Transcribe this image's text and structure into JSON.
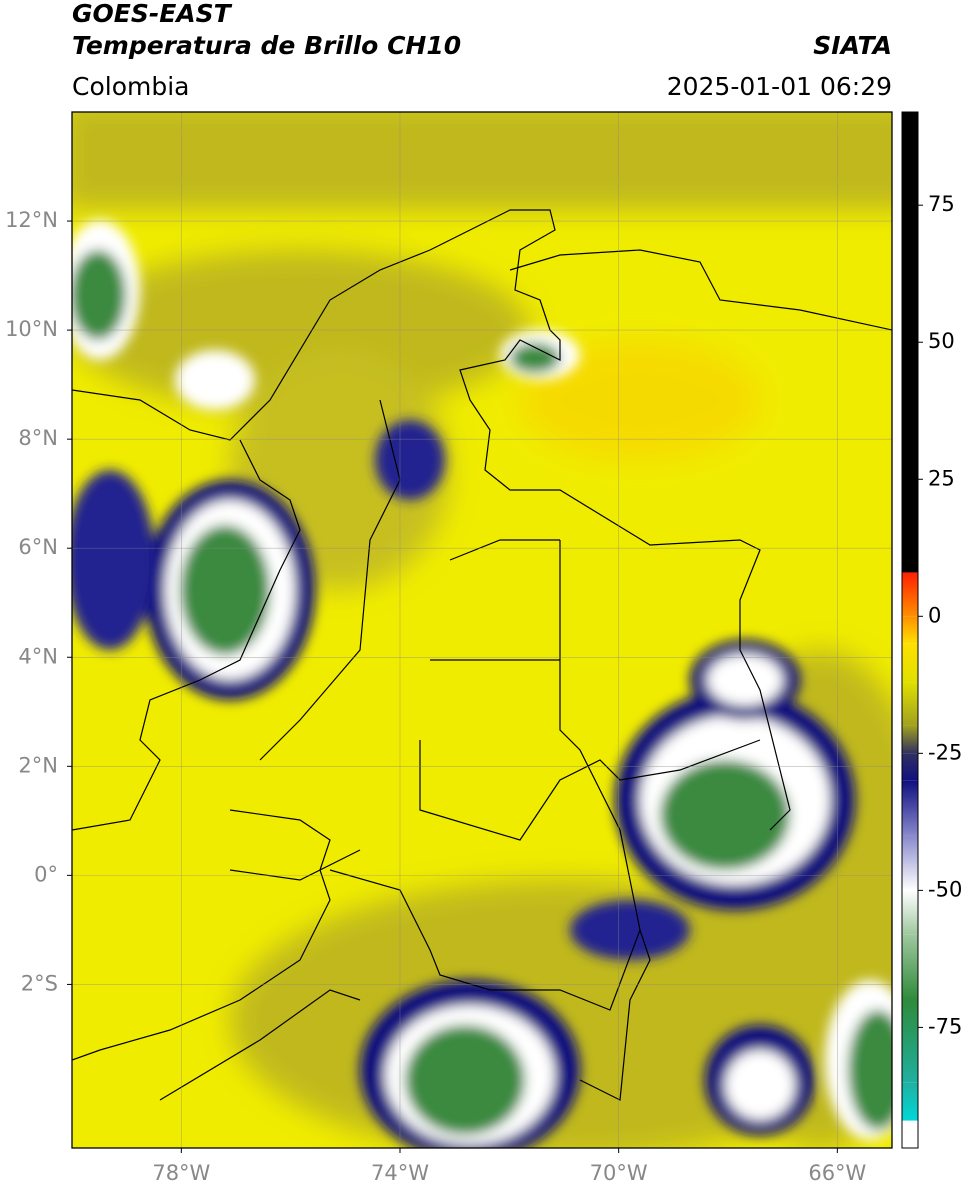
{
  "chart_data": {
    "type": "map",
    "title": "GOES-EAST",
    "subtitle": "Temperatura de Brillo CH10",
    "source": "SIATA",
    "region": "Colombia",
    "timestamp": "2025-01-01 06:29",
    "xlim": [
      -80,
      -65
    ],
    "ylim": [
      -5,
      14
    ],
    "xticks": [
      {
        "value": -78,
        "label": "78°W"
      },
      {
        "value": -74,
        "label": "74°W"
      },
      {
        "value": -70,
        "label": "70°W"
      },
      {
        "value": -66,
        "label": "66°W"
      }
    ],
    "yticks": [
      {
        "value": -2,
        "label": "2°S"
      },
      {
        "value": 0,
        "label": "0°"
      },
      {
        "value": 2,
        "label": "2°N"
      },
      {
        "value": 4,
        "label": "4°N"
      },
      {
        "value": 6,
        "label": "6°N"
      },
      {
        "value": 8,
        "label": "8°N"
      },
      {
        "value": 10,
        "label": "10°N"
      },
      {
        "value": 12,
        "label": "12°N"
      }
    ],
    "grid": true,
    "colorbar": {
      "lim": [
        -97,
        92
      ],
      "ticks": [
        -75,
        -50,
        -25,
        0,
        25,
        50,
        75
      ],
      "stops": [
        {
          "value": -97,
          "color": "#ffffff"
        },
        {
          "value": -92,
          "color": "#ffffff"
        },
        {
          "value": -92,
          "color": "#00d8d8"
        },
        {
          "value": -85,
          "color": "#20b0a0"
        },
        {
          "value": -70,
          "color": "#2e8b3a"
        },
        {
          "value": -58,
          "color": "#a0c8a0"
        },
        {
          "value": -50,
          "color": "#ffffff"
        },
        {
          "value": -40,
          "color": "#8888cc"
        },
        {
          "value": -30,
          "color": "#101080"
        },
        {
          "value": -25,
          "color": "#303060"
        },
        {
          "value": -20,
          "color": "#a0a020"
        },
        {
          "value": -12,
          "color": "#e0e000"
        },
        {
          "value": -5,
          "color": "#ffe000"
        },
        {
          "value": 0,
          "color": "#ff9000"
        },
        {
          "value": 8,
          "color": "#ff2000"
        },
        {
          "value": 8,
          "color": "#000000"
        },
        {
          "value": 92,
          "color": "#000000"
        }
      ]
    }
  }
}
